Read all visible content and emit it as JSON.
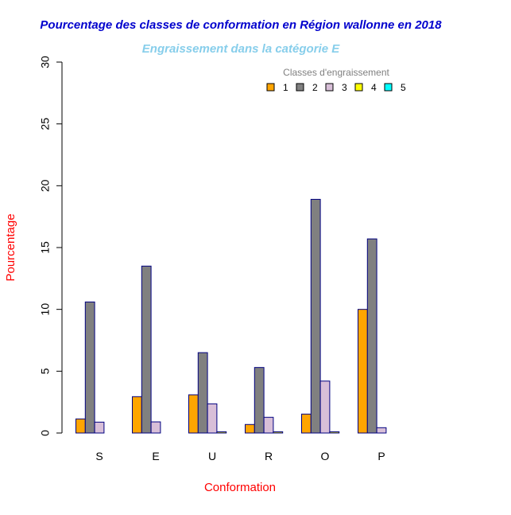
{
  "chart_data": {
    "type": "bar",
    "title": "Pourcentage des classes de conformation en Région wallonne en 2018",
    "subtitle": "Engraissement dans la catégorie E",
    "xlabel": "Conformation",
    "ylabel": "Pourcentage",
    "ylim": [
      0,
      30
    ],
    "yticks": [
      "0",
      "5",
      "10",
      "15",
      "20",
      "25",
      "30"
    ],
    "categories": [
      "S",
      "E",
      "U",
      "R",
      "O",
      "P"
    ],
    "legend": {
      "title": "Classes d'engraissement",
      "placement": "top-right"
    },
    "series": [
      {
        "name": "1",
        "color": "#FFA500",
        "values": [
          1.14,
          2.94,
          3.09,
          0.69,
          1.53,
          10.0
        ]
      },
      {
        "name": "2",
        "color": "#808080",
        "values": [
          10.6,
          13.5,
          6.5,
          5.3,
          18.9,
          15.7
        ]
      },
      {
        "name": "3",
        "color": "#D8BFD8",
        "values": [
          0.88,
          0.9,
          2.36,
          1.27,
          4.2,
          0.43
        ]
      },
      {
        "name": "4",
        "color": "#FFFF00",
        "values": [
          0,
          0,
          0.1,
          0.1,
          0.1,
          0
        ]
      },
      {
        "name": "5",
        "color": "#00FFFF",
        "values": [
          0,
          0,
          0,
          0,
          0,
          0
        ]
      }
    ],
    "colors": {
      "title": "#0000CD",
      "subtitle": "#87CEEB",
      "axis_labels": "#FF0000",
      "bar_border": "#000080",
      "legend_title": "#808080"
    }
  }
}
